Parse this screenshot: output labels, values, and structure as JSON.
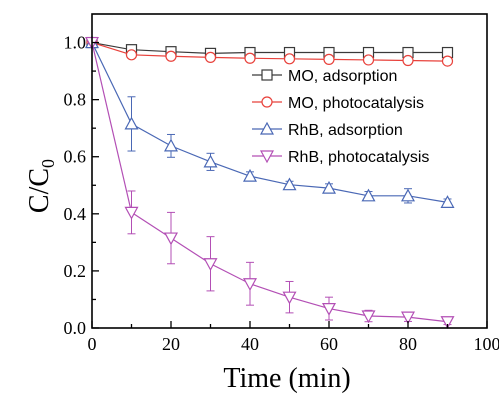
{
  "chart_data": {
    "type": "line",
    "xlabel": "Time (min)",
    "ylabel_main": "C/C",
    "ylabel_sub": "0",
    "xlim": [
      0,
      100
    ],
    "ylim": [
      0,
      1.1
    ],
    "x_ticks": [
      0,
      20,
      40,
      60,
      80,
      100
    ],
    "x_tick_labels": [
      "0",
      "20",
      "40",
      "60",
      "80",
      "100"
    ],
    "y_ticks": [
      0.0,
      0.2,
      0.4,
      0.6,
      0.8,
      1.0
    ],
    "y_tick_labels": [
      "0.0",
      "0.2",
      "0.4",
      "0.6",
      "0.8",
      "1.0"
    ],
    "legend_position": "top-right",
    "series": [
      {
        "name": "MO, adsorption",
        "color": "#3a3a3a",
        "marker": "square",
        "x": [
          0,
          10,
          20,
          30,
          40,
          50,
          60,
          70,
          80,
          90
        ],
        "y": [
          1.0,
          0.975,
          0.968,
          0.962,
          0.965,
          0.965,
          0.965,
          0.965,
          0.965,
          0.965
        ],
        "err": [
          0,
          0.008,
          0.005,
          0.005,
          0.005,
          0.005,
          0.005,
          0.005,
          0.005,
          0.005
        ]
      },
      {
        "name": "MO, photocatalysis",
        "color": "#e8413b",
        "marker": "circle",
        "x": [
          0,
          10,
          20,
          30,
          40,
          50,
          60,
          70,
          80,
          90
        ],
        "y": [
          1.0,
          0.957,
          0.952,
          0.948,
          0.945,
          0.943,
          0.941,
          0.939,
          0.937,
          0.935
        ],
        "err": [
          0,
          0.007,
          0.005,
          0.005,
          0.005,
          0.005,
          0.005,
          0.005,
          0.005,
          0.005
        ]
      },
      {
        "name": "RhB, adsorption",
        "color": "#4a68b5",
        "marker": "triangle-up",
        "x": [
          0,
          10,
          20,
          30,
          40,
          50,
          60,
          70,
          80,
          90
        ],
        "y": [
          1.0,
          0.715,
          0.638,
          0.582,
          0.532,
          0.502,
          0.49,
          0.463,
          0.463,
          0.44
        ],
        "err": [
          0,
          0.095,
          0.04,
          0.03,
          0.015,
          0.012,
          0.015,
          0.015,
          0.025,
          0.012
        ]
      },
      {
        "name": "RhB, photocatalysis",
        "color": "#b34fb5",
        "marker": "triangle-down",
        "x": [
          0,
          10,
          20,
          30,
          40,
          50,
          60,
          70,
          80,
          90
        ],
        "y": [
          1.0,
          0.405,
          0.315,
          0.225,
          0.155,
          0.108,
          0.068,
          0.042,
          0.038,
          0.022
        ],
        "err": [
          0,
          0.075,
          0.09,
          0.095,
          0.075,
          0.055,
          0.04,
          0.02,
          0.015,
          0.01
        ]
      }
    ]
  }
}
